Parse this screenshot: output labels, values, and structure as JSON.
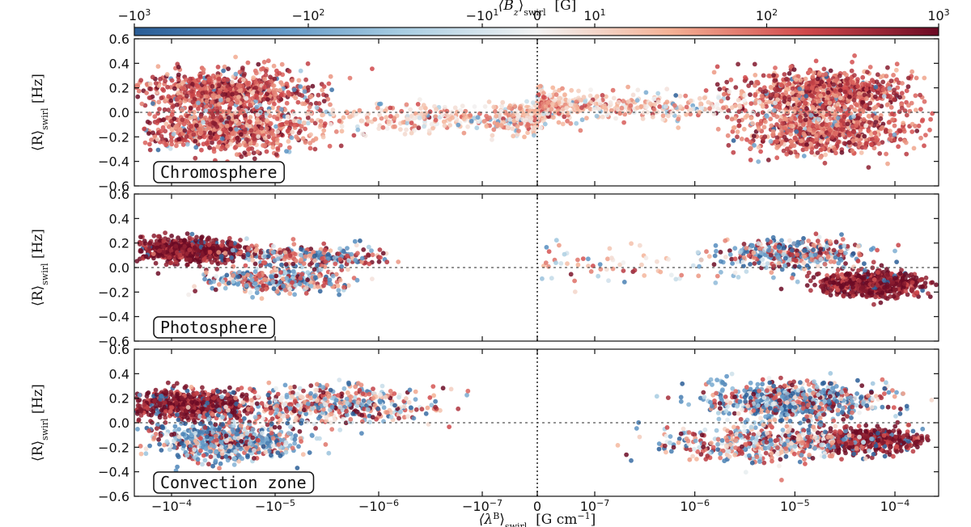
{
  "chart_data": {
    "type": "scatter",
    "colorbar": {
      "label_main": "⟨B",
      "label_sub": "z",
      "label_rest": "⟩",
      "label_swirl": "swirl",
      "label_unit": "[G]",
      "tick_values": [
        -1000,
        -100,
        -10,
        0,
        10,
        100,
        1000
      ],
      "tick_labels": [
        {
          "base": "−10",
          "exp": "3"
        },
        {
          "base": "−10",
          "exp": "2"
        },
        {
          "base": "−10",
          "exp": "1"
        },
        {
          "base": "0",
          "exp": ""
        },
        {
          "base": "10",
          "exp": "1"
        },
        {
          "base": "10",
          "exp": "2"
        },
        {
          "base": "10",
          "exp": "3"
        }
      ],
      "colormap": "RdBu_r",
      "color_stops": [
        "#2a5d96",
        "#5a92c3",
        "#a8cde2",
        "#f2f2f2",
        "#f4b195",
        "#d1494b",
        "#6b0a24"
      ]
    },
    "xaxis": {
      "label_main": "⟨λ",
      "label_sup": "B",
      "label_rest": "⟩",
      "label_swirl": "swirl",
      "label_unit": "[G cm",
      "label_unit_exp": "−1",
      "label_unit_close": "]",
      "scale": "symlog",
      "tick_values": [
        -0.0001,
        -1e-05,
        -1e-06,
        -1e-07,
        0,
        1e-07,
        1e-06,
        1e-05,
        0.0001
      ],
      "tick_labels": [
        {
          "base": "−10",
          "exp": "−4"
        },
        {
          "base": "−10",
          "exp": "−5"
        },
        {
          "base": "−10",
          "exp": "−6"
        },
        {
          "base": "−10",
          "exp": "−7"
        },
        {
          "base": "0",
          "exp": ""
        },
        {
          "base": "10",
          "exp": "−7"
        },
        {
          "base": "10",
          "exp": "−6"
        },
        {
          "base": "10",
          "exp": "−5"
        },
        {
          "base": "10",
          "exp": "−4"
        }
      ]
    },
    "yaxis": {
      "label_main": "⟨R⟩",
      "label_sub": "swirl",
      "label_unit": "[Hz]",
      "ylim": [
        -0.6,
        0.6
      ],
      "tick_values": [
        -0.6,
        -0.4,
        -0.2,
        0.0,
        0.2,
        0.4,
        0.6
      ],
      "tick_labels": [
        "−0.6",
        "−0.4",
        "−0.2",
        "0.0",
        "0.2",
        "0.4",
        "0.6"
      ]
    },
    "grid": false,
    "reference_lines": {
      "y": 0.0,
      "x": 0
    },
    "panels": [
      {
        "name": "Chromosphere",
        "point_groups": [
          {
            "x_center": -3e-05,
            "x_spread_decades": 0.75,
            "y_center": 0.17,
            "y_spread": 0.09,
            "bz_mean": 150,
            "bz_spread_decades": 0.5,
            "bz_sign_flip": 0.05,
            "count": 750
          },
          {
            "x_center": 2e-05,
            "x_spread_decades": 0.75,
            "y_center": 0.17,
            "y_spread": 0.09,
            "bz_mean": 150,
            "bz_spread_decades": 0.5,
            "bz_sign_flip": 0.05,
            "count": 750
          },
          {
            "x_center": -3e-05,
            "x_spread_decades": 0.75,
            "y_center": -0.15,
            "y_spread": 0.09,
            "bz_mean": 120,
            "bz_spread_decades": 0.5,
            "bz_sign_flip": 0.05,
            "count": 700
          },
          {
            "x_center": 2e-05,
            "x_spread_decades": 0.75,
            "y_center": -0.15,
            "y_spread": 0.09,
            "bz_mean": 120,
            "bz_spread_decades": 0.5,
            "bz_sign_flip": 0.05,
            "count": 700
          },
          {
            "x_center": 1e-07,
            "x_spread_decades": 1.8,
            "y_center": 0.05,
            "y_spread": 0.06,
            "bz_mean": 20,
            "bz_spread_decades": 0.6,
            "bz_sign_flip": 0.15,
            "count": 500
          },
          {
            "x_center": -1e-07,
            "x_spread_decades": 1.8,
            "y_center": -0.05,
            "y_spread": 0.06,
            "bz_mean": 20,
            "bz_spread_decades": 0.6,
            "bz_sign_flip": 0.15,
            "count": 500
          }
        ]
      },
      {
        "name": "Photosphere",
        "point_groups": [
          {
            "x_center": -7e-05,
            "x_spread_decades": 0.45,
            "y_center": 0.14,
            "y_spread": 0.05,
            "bz_mean": 700,
            "bz_spread_decades": 0.35,
            "bz_sign_flip": 0.05,
            "count": 650
          },
          {
            "x_center": -5e-06,
            "x_spread_decades": 0.7,
            "y_center": 0.09,
            "y_spread": 0.05,
            "bz_mean": 150,
            "bz_spread_decades": 0.6,
            "bz_sign_flip": 0.35,
            "count": 250
          },
          {
            "x_center": -1e-05,
            "x_spread_decades": 0.6,
            "y_center": -0.11,
            "y_spread": 0.05,
            "bz_mean": 100,
            "bz_spread_decades": 0.7,
            "bz_sign_flip": 0.5,
            "count": 350
          },
          {
            "x_center": 6e-05,
            "x_spread_decades": 0.45,
            "y_center": -0.14,
            "y_spread": 0.05,
            "bz_mean": 700,
            "bz_spread_decades": 0.35,
            "bz_sign_flip": 0.05,
            "count": 650
          },
          {
            "x_center": 1e-05,
            "x_spread_decades": 0.6,
            "y_center": 0.11,
            "y_spread": 0.06,
            "bz_mean": 150,
            "bz_spread_decades": 0.7,
            "bz_sign_flip": 0.5,
            "count": 350
          },
          {
            "x_center": 3e-07,
            "x_spread_decades": 1.2,
            "y_center": 0.0,
            "y_spread": 0.08,
            "bz_mean": 30,
            "bz_spread_decades": 0.6,
            "bz_sign_flip": 0.4,
            "count": 80
          }
        ]
      },
      {
        "name": "Convection zone",
        "point_groups": [
          {
            "x_center": -7e-05,
            "x_spread_decades": 0.55,
            "y_center": 0.15,
            "y_spread": 0.06,
            "bz_mean": 600,
            "bz_spread_decades": 0.4,
            "bz_sign_flip": 0.1,
            "count": 600
          },
          {
            "x_center": -3e-06,
            "x_spread_decades": 0.9,
            "y_center": 0.15,
            "y_spread": 0.08,
            "bz_mean": 80,
            "bz_spread_decades": 0.8,
            "bz_sign_flip": 0.4,
            "count": 500
          },
          {
            "x_center": -3e-05,
            "x_spread_decades": 0.7,
            "y_center": -0.15,
            "y_spread": 0.08,
            "bz_mean": 150,
            "bz_spread_decades": 0.8,
            "bz_sign_flip": 0.65,
            "count": 650
          },
          {
            "x_center": 1e-05,
            "x_spread_decades": 0.8,
            "y_center": 0.18,
            "y_spread": 0.08,
            "bz_mean": 150,
            "bz_spread_decades": 0.8,
            "bz_sign_flip": 0.6,
            "count": 650
          },
          {
            "x_center": 6e-05,
            "x_spread_decades": 0.45,
            "y_center": -0.15,
            "y_spread": 0.05,
            "bz_mean": 600,
            "bz_spread_decades": 0.4,
            "bz_sign_flip": 0.1,
            "count": 450
          },
          {
            "x_center": 5e-06,
            "x_spread_decades": 0.9,
            "y_center": -0.17,
            "y_spread": 0.08,
            "bz_mean": 80,
            "bz_spread_decades": 0.8,
            "bz_sign_flip": 0.35,
            "count": 450
          }
        ]
      }
    ]
  }
}
